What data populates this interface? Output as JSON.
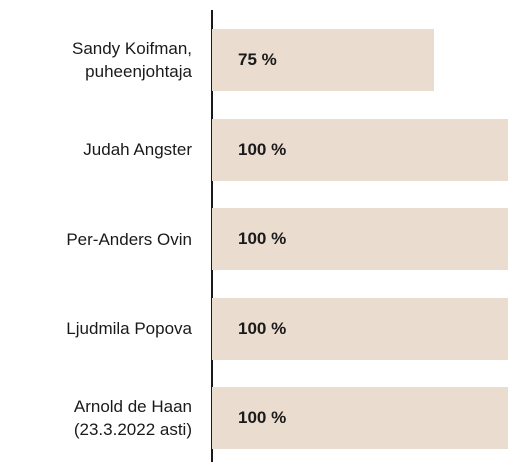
{
  "chart_data": {
    "type": "bar",
    "orientation": "horizontal",
    "categories": [
      "Sandy Koifman, puheenjohtaja",
      "Judah Angster",
      "Per-Anders Ovin",
      "Ljudmila Popova",
      "Arnold de Haan (23.3.2022 asti)"
    ],
    "values": [
      75,
      100,
      100,
      100,
      100
    ],
    "value_labels": [
      "75 %",
      "100 %",
      "100 %",
      "100 %",
      "100 %"
    ],
    "color": "#ebdcd0",
    "xlim": [
      0,
      100
    ]
  }
}
